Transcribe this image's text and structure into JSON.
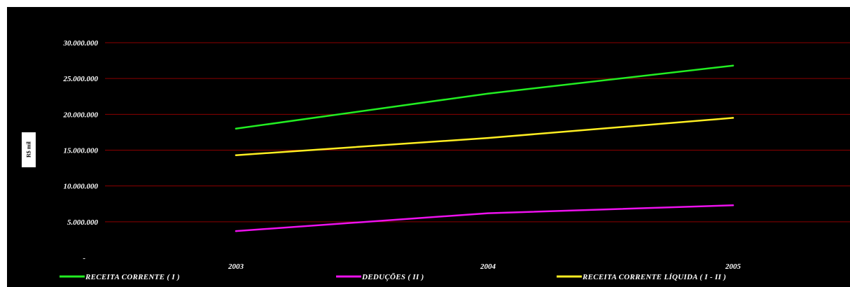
{
  "chart_data": {
    "type": "line",
    "title": "",
    "xlabel": "",
    "ylabel": "R$ mil",
    "categories": [
      "2003",
      "2004",
      "2005"
    ],
    "ylim": [
      0,
      30000000
    ],
    "yticks": [
      0,
      5000000,
      10000000,
      15000000,
      20000000,
      25000000,
      30000000
    ],
    "ytick_labels": [
      "-",
      "5.000.000",
      "10.000.000",
      "15.000.000",
      "20.000.000",
      "25.000.000",
      "30.000.000"
    ],
    "grid": true,
    "legend_position": "bottom",
    "series": [
      {
        "name": "RECEITA CORRENTE  ( I )",
        "color": "#22ee22",
        "values": [
          18000000,
          22900000,
          26800000
        ]
      },
      {
        "name": "DEDUÇÕES ( II )",
        "color": "#ee11ee",
        "values": [
          3700000,
          6200000,
          7300000
        ]
      },
      {
        "name": "RECEITA   CORRENTE   LÍQUIDA  ( I - II )",
        "color": "#ffee22",
        "values": [
          14300000,
          16700000,
          19500000
        ]
      }
    ],
    "colors": {
      "background": "#000000",
      "grid": "#8b0000",
      "text": "#ffffff"
    }
  }
}
